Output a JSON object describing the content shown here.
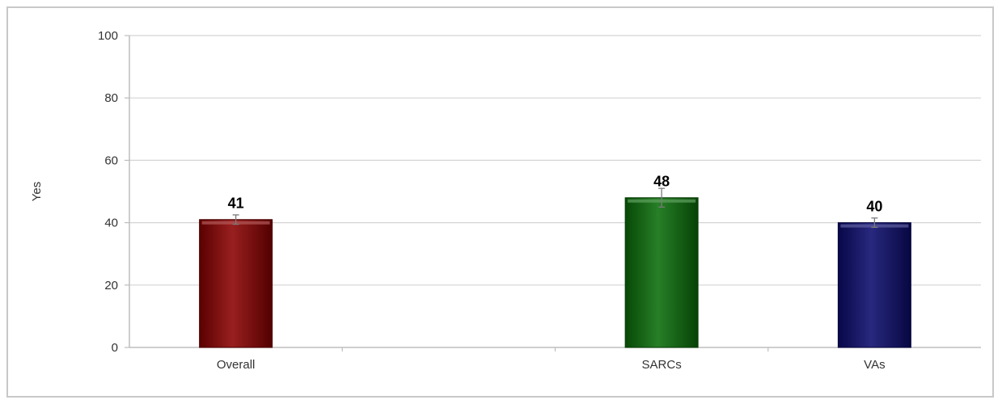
{
  "chart_data": {
    "type": "bar",
    "title": "",
    "xlabel": "",
    "ylabel": "Yes",
    "ylim": [
      0,
      100
    ],
    "yticks": [
      0,
      20,
      40,
      60,
      80,
      100
    ],
    "grid": true,
    "categories": [
      "Overall",
      "",
      "SARCs",
      "VAs"
    ],
    "values": [
      41,
      null,
      48,
      40
    ],
    "data_labels": [
      "41",
      "",
      "48",
      "40"
    ],
    "error_bars": [
      [
        39.5,
        42.5
      ],
      null,
      [
        45,
        51
      ],
      [
        38.5,
        41.5
      ]
    ],
    "colors": [
      "#8b0000",
      null,
      "#0a6e0a",
      "#0b0b6e"
    ]
  }
}
